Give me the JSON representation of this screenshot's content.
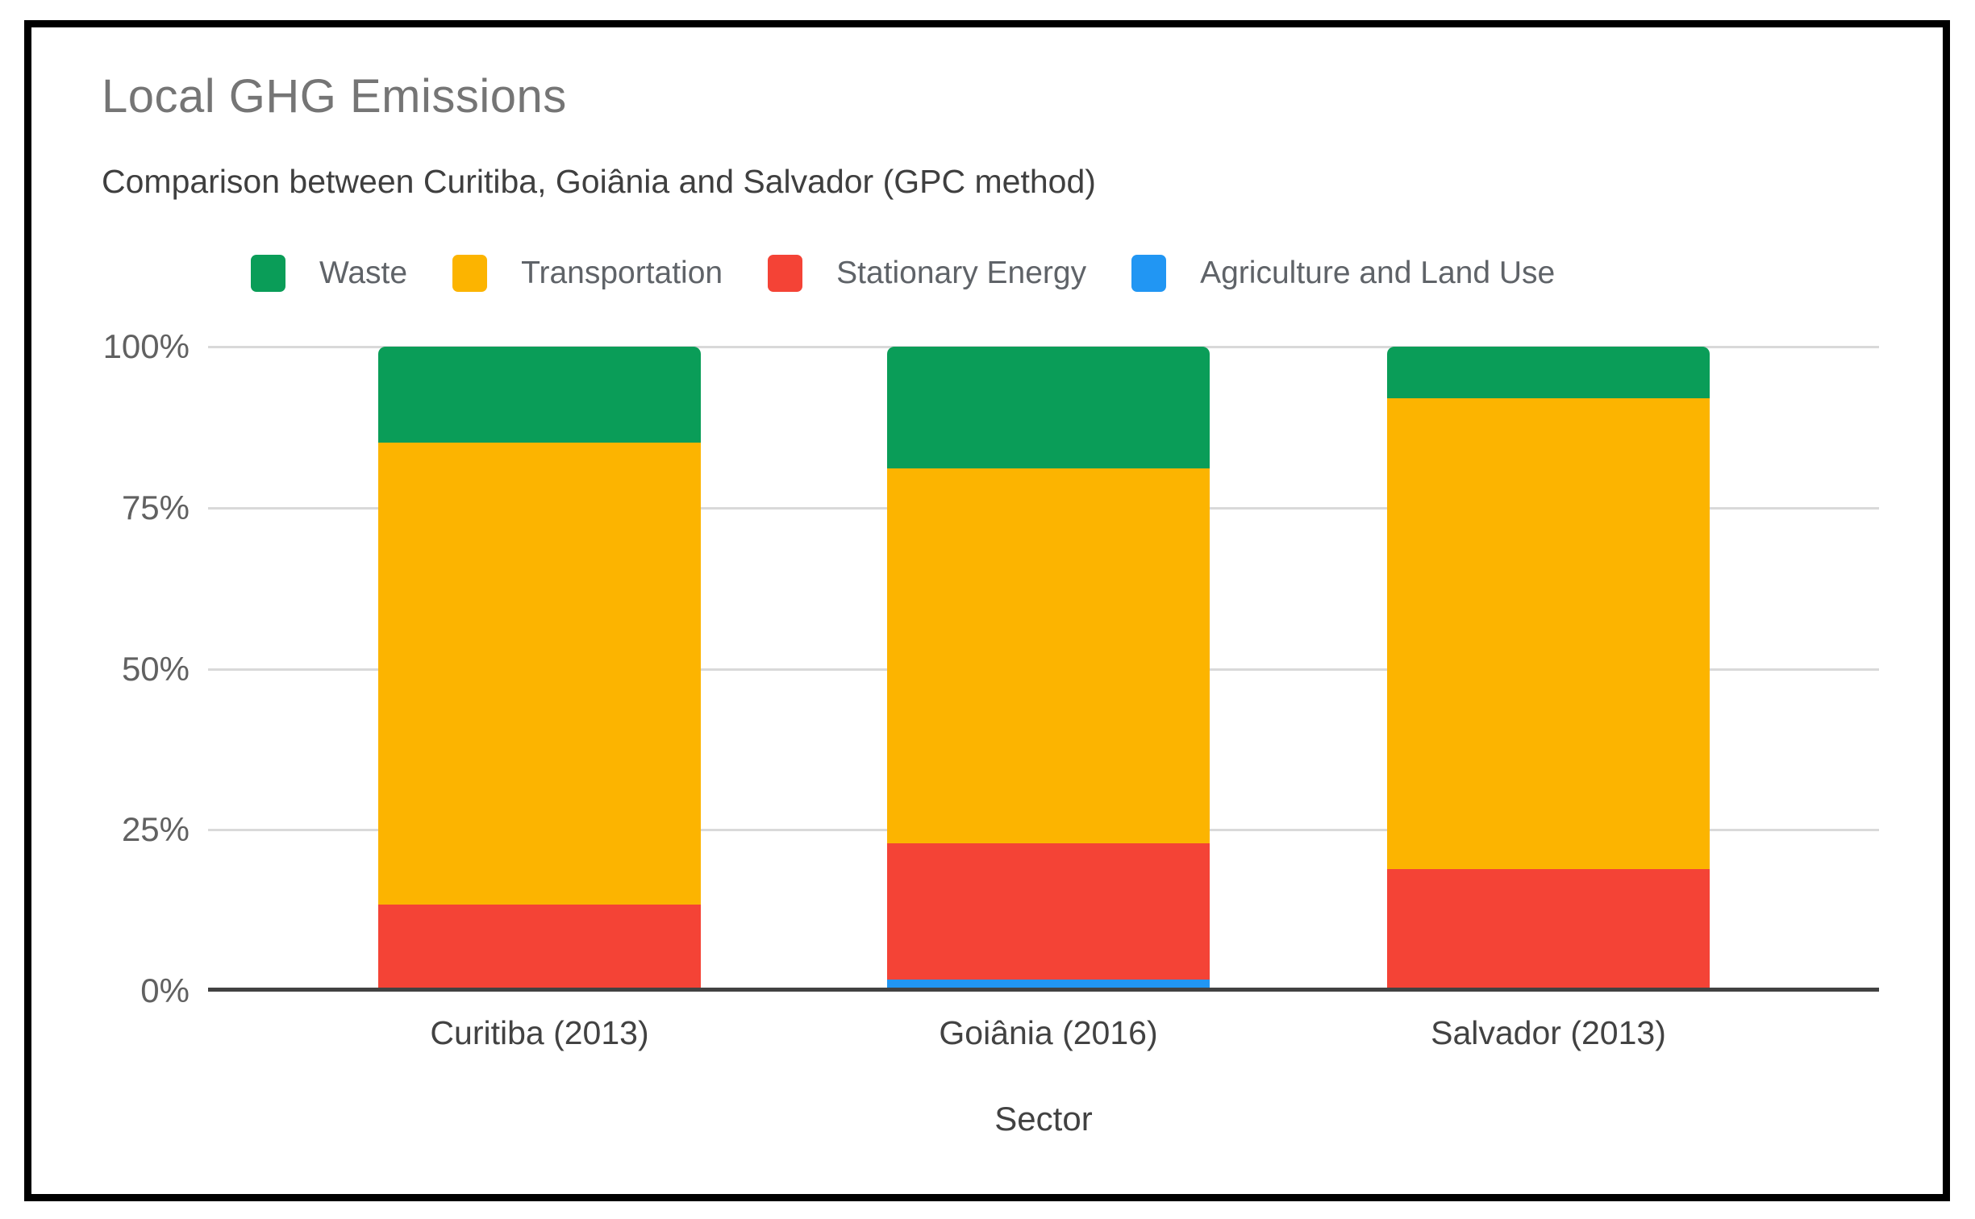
{
  "chart": {
    "title": "Local GHG Emissions",
    "subtitle": "Comparison between Curitiba, Goiânia and Salvador (GPC method)",
    "xlabel": "Sector"
  },
  "colors": {
    "waste_green": "#0a9d58",
    "transportation_orange": "#fcb400",
    "stationary_energy_red": "#f44336",
    "agriculture_blue": "#2196f3",
    "title_gray": "#757575",
    "axis_baseline": "#424242",
    "gridline_gray": "#d9d9d9"
  },
  "chart_data": {
    "type": "bar",
    "stacked": true,
    "percent_stacked": true,
    "title": "Local GHG Emissions",
    "subtitle": "Comparison between Curitiba, Goiânia and Salvador (GPC method)",
    "xlabel": "Sector",
    "ylabel": "",
    "ylim": [
      0,
      100
    ],
    "yticks": [
      0,
      25,
      50,
      75,
      100
    ],
    "ytick_labels": [
      "0%",
      "25%",
      "50%",
      "75%",
      "100%"
    ],
    "grid": true,
    "legend_position": "top",
    "categories": [
      "Curitiba (2013)",
      "Goiânia (2016)",
      "Salvador (2013)"
    ],
    "series": [
      {
        "name": "Agriculture and Land Use",
        "color": "#2196f3",
        "values": [
          0,
          1.2,
          0
        ]
      },
      {
        "name": "Stationary Energy",
        "color": "#f44336",
        "values": [
          13,
          21.3,
          18.5
        ]
      },
      {
        "name": "Transportation",
        "color": "#fcb400",
        "values": [
          72,
          58.5,
          73.5
        ]
      },
      {
        "name": "Waste",
        "color": "#0a9d58",
        "values": [
          15,
          19,
          8
        ]
      }
    ],
    "legend": [
      "Waste",
      "Transportation",
      "Stationary Energy",
      "Agriculture and Land Use"
    ]
  }
}
